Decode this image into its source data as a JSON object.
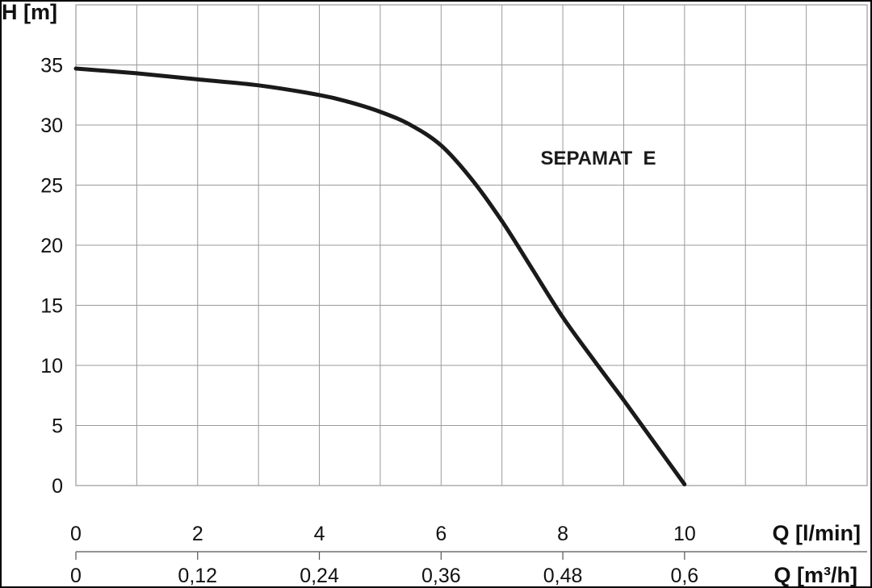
{
  "chart_data": {
    "type": "line",
    "ylabel": "H [m]",
    "xlabel": "Q [l/min]",
    "xlabel_secondary": "Q [m³/h]",
    "annotation": "SEPAMAT  E",
    "xlim": [
      0,
      13
    ],
    "ylim": [
      0,
      40
    ],
    "grid": true,
    "colors": {
      "line": "#1a1a1a",
      "grid": "#9a9a9a",
      "frame": "#000000"
    },
    "y_ticks": [
      {
        "value": 0,
        "label": "0"
      },
      {
        "value": 5,
        "label": "5"
      },
      {
        "value": 10,
        "label": "10"
      },
      {
        "value": 15,
        "label": "15"
      },
      {
        "value": 20,
        "label": "20"
      },
      {
        "value": 25,
        "label": "25"
      },
      {
        "value": 30,
        "label": "30"
      },
      {
        "value": 35,
        "label": "35"
      }
    ],
    "x_ticks": [
      {
        "value": 0,
        "label": "0"
      },
      {
        "value": 2,
        "label": "2"
      },
      {
        "value": 4,
        "label": "4"
      },
      {
        "value": 6,
        "label": "6"
      },
      {
        "value": 8,
        "label": "8"
      },
      {
        "value": 10,
        "label": "10"
      }
    ],
    "x_ticks_secondary": [
      {
        "value": 0,
        "label": "0"
      },
      {
        "value": 2,
        "label": "0,12"
      },
      {
        "value": 4,
        "label": "0,24"
      },
      {
        "value": 6,
        "label": "0,36"
      },
      {
        "value": 8,
        "label": "0,48"
      },
      {
        "value": 10,
        "label": "0,6"
      }
    ],
    "series": [
      {
        "x": [
          0,
          1,
          2,
          3,
          4,
          4.5,
          5,
          5.5,
          6,
          6.5,
          7,
          7.5,
          8,
          8.5,
          9,
          9.5,
          10
        ],
        "y": [
          34.7,
          34.3,
          33.8,
          33.3,
          32.5,
          31.9,
          31.1,
          30.0,
          28.3,
          25.5,
          22.0,
          18.0,
          14.0,
          10.5,
          7.1,
          3.6,
          0.1
        ]
      }
    ]
  }
}
